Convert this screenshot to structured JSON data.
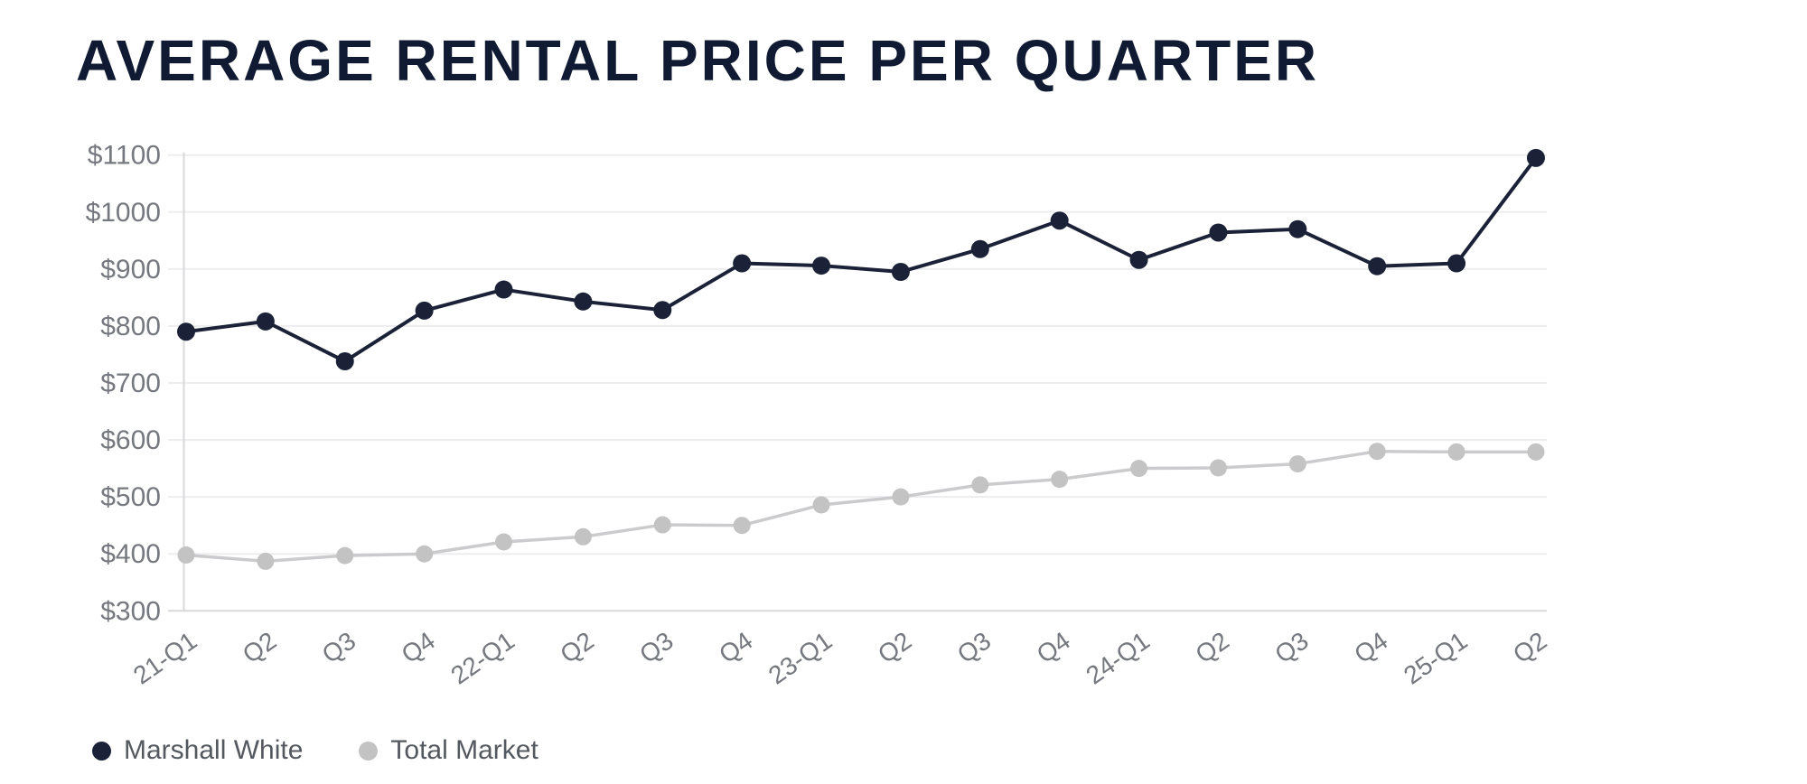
{
  "title": "AVERAGE RENTAL PRICE PER QUARTER",
  "colors": {
    "marshall_white": "#1b2238",
    "total_market_dot": "#c3c3c4",
    "total_market_line": "#cbcbcd",
    "grid": "#ededef",
    "axis_line": "#d8d8db",
    "axis_text": "#75787e",
    "title_text": "#101b33",
    "legend_text": "#54585f",
    "background": "#ffffff"
  },
  "legend": {
    "items": [
      {
        "label": "Marshall White",
        "color": "#1b2238"
      },
      {
        "label": "Total Market",
        "color": "#c3c3c4"
      }
    ]
  },
  "chart_data": {
    "type": "line",
    "title": "AVERAGE RENTAL PRICE PER QUARTER",
    "categories": [
      "21-Q1",
      "Q2",
      "Q3",
      "Q4",
      "22-Q1",
      "Q2",
      "Q3",
      "Q4",
      "23-Q1",
      "Q2",
      "Q3",
      "Q4",
      "24-Q1",
      "Q2",
      "Q3",
      "Q4",
      "25-Q1",
      "Q2"
    ],
    "series": [
      {
        "name": "Marshall White",
        "color": "#1b2238",
        "line_color": "#1b2238",
        "values": [
          790,
          808,
          738,
          827,
          864,
          843,
          828,
          910,
          906,
          895,
          935,
          985,
          916,
          964,
          970,
          905,
          910,
          1095
        ]
      },
      {
        "name": "Total Market",
        "color": "#c3c3c4",
        "line_color": "#cbcbcd",
        "values": [
          398,
          387,
          397,
          400,
          421,
          430,
          451,
          450,
          486,
          500,
          521,
          531,
          550,
          551,
          558,
          580,
          579,
          579
        ]
      }
    ],
    "yticks": [
      {
        "value": 300,
        "label": "$300"
      },
      {
        "value": 400,
        "label": "$400"
      },
      {
        "value": 500,
        "label": "$500"
      },
      {
        "value": 600,
        "label": "$600"
      },
      {
        "value": 700,
        "label": "$700"
      },
      {
        "value": 800,
        "label": "$800"
      },
      {
        "value": 900,
        "label": "$900"
      },
      {
        "value": 1000,
        "label": "$1000"
      },
      {
        "value": 1100,
        "label": "$1100"
      }
    ],
    "ylim": [
      300,
      1100
    ],
    "xlabel": "",
    "ylabel": "",
    "grid": "horizontal",
    "legend_position": "bottom-left"
  }
}
